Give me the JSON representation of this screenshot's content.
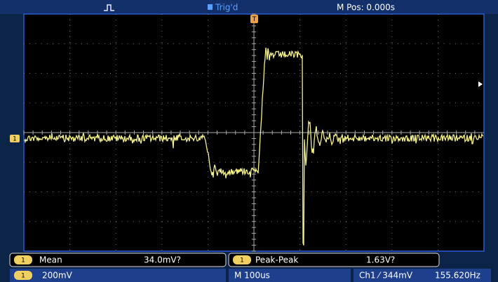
{
  "header": {
    "status": "Trig'd",
    "position": "M Pos: 0.000s"
  },
  "channel_marker": "1",
  "trigger_marker": "T",
  "measurements": [
    {
      "channel": "1",
      "label": "Mean",
      "value": "34.0mV?"
    },
    {
      "channel": "1",
      "label": "Peak-Peak",
      "value": "1.63V?"
    }
  ],
  "status": {
    "channel": "1",
    "scale": "200mV",
    "timebase": "M 100us",
    "trigger": "Ch1 ⁄ 344mV",
    "frequency": "155.620Hz"
  }
}
